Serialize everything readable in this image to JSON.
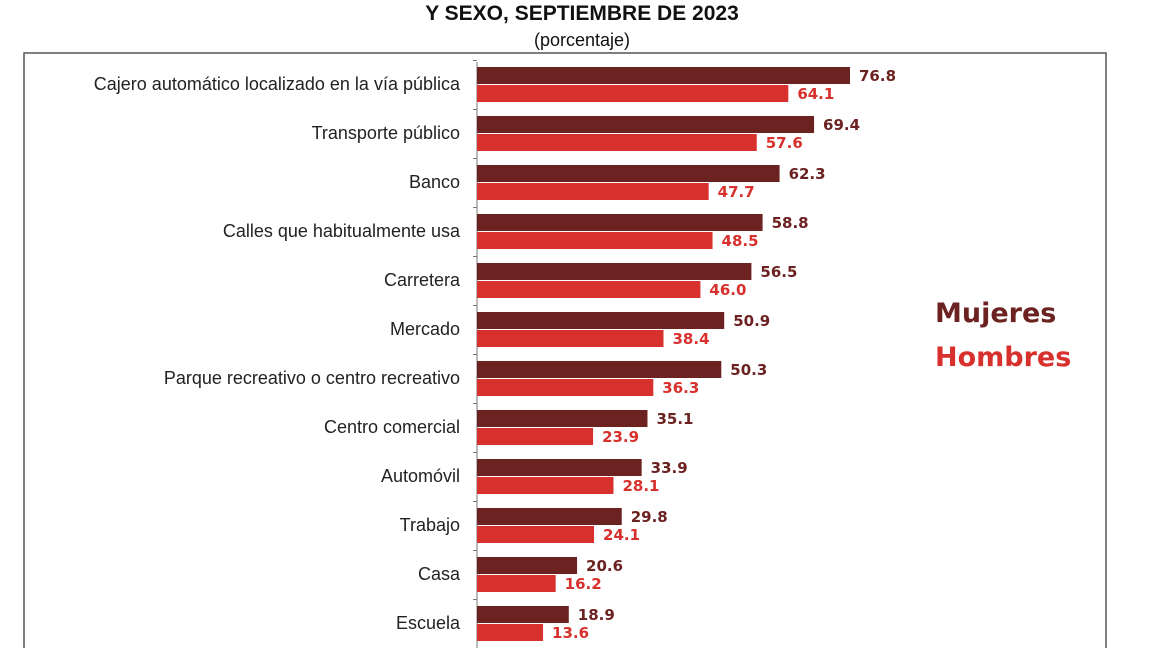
{
  "chart_data": {
    "type": "bar",
    "orientation": "horizontal",
    "title": "Y SEXO, SEPTIEMBRE DE 2023",
    "subtitle": "(porcentaje)",
    "categories": [
      "Cajero automático localizado en la vía pública",
      "Transporte público",
      "Banco",
      "Calles que habitualmente usa",
      "Carretera",
      "Mercado",
      "Parque recreativo o centro recreativo",
      "Centro comercial",
      "Automóvil",
      "Trabajo",
      "Casa",
      "Escuela"
    ],
    "series": [
      {
        "name": "Mujeres",
        "color": "#6b2220",
        "values": [
          76.8,
          69.4,
          62.3,
          58.8,
          56.5,
          50.9,
          50.3,
          35.1,
          33.9,
          29.8,
          20.6,
          18.9
        ]
      },
      {
        "name": "Hombres",
        "color": "#d8302c",
        "values": [
          64.1,
          57.6,
          47.7,
          48.5,
          46.0,
          38.4,
          36.3,
          23.9,
          28.1,
          24.1,
          16.2,
          13.6
        ]
      }
    ],
    "xlim": [
      0,
      80
    ],
    "grid": false,
    "legend": "right",
    "data_labels": true
  }
}
